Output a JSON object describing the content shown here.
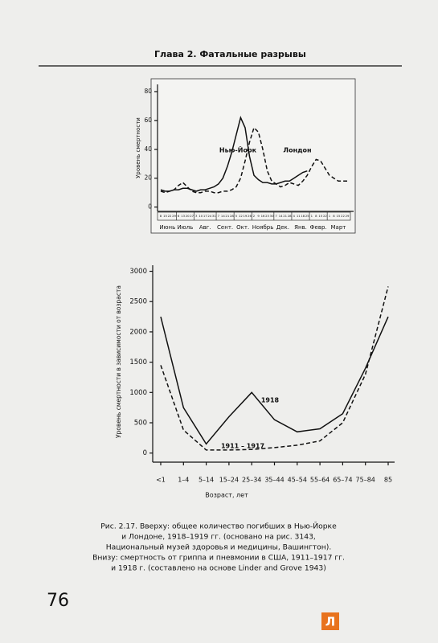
{
  "header": "Глава 2. Фатальные разрывы",
  "chart_data": [
    {
      "type": "line",
      "ylabel": "Уровень смертности",
      "categories": [
        "8",
        "15",
        "22",
        "29",
        "6",
        "13",
        "20",
        "27",
        "3",
        "10",
        "17",
        "24",
        "31",
        "7",
        "14",
        "21",
        "28",
        "5",
        "12",
        "19",
        "26",
        "2",
        "9",
        "16",
        "23",
        "30",
        "7",
        "14",
        "21",
        "28",
        "4",
        "11",
        "18",
        "25",
        "1",
        "8",
        "15",
        "22",
        "1",
        "8",
        "15",
        "22",
        "29"
      ],
      "months": [
        "Июнь",
        "Июль",
        "Авг.",
        "Сент.",
        "Окт.",
        "Ноябрь",
        "Дек.",
        "Янв.",
        "Февр.",
        "Март"
      ],
      "ylim": [
        -3,
        85
      ],
      "yticks": [
        0,
        20,
        40,
        60,
        80
      ],
      "series": [
        {
          "name": "Нью-Йорк",
          "color": "#111111",
          "dashed": false,
          "values": [
            12,
            11,
            11,
            12,
            12,
            13,
            13,
            12,
            11,
            12,
            12,
            13,
            14,
            16,
            20,
            28,
            38,
            50,
            62,
            55,
            35,
            22,
            19,
            17,
            17,
            16,
            16,
            17,
            18,
            18,
            20,
            22,
            24,
            25,
            null,
            null,
            null,
            null,
            null,
            null,
            null,
            null,
            null
          ]
        },
        {
          "name": "Лондон",
          "color": "#111111",
          "dashed": true,
          "values": [
            11,
            10,
            11,
            12,
            15,
            17,
            14,
            11,
            10,
            10,
            11,
            11,
            10,
            10,
            11,
            11,
            12,
            14,
            20,
            32,
            45,
            55,
            52,
            40,
            25,
            18,
            16,
            14,
            15,
            17,
            16,
            15,
            18,
            22,
            28,
            33,
            32,
            27,
            22,
            20,
            18,
            18,
            18
          ]
        }
      ]
    },
    {
      "type": "line",
      "ylabel": "Уровень смертности в зависимости от возраста",
      "xlabel": "Возраст, лет",
      "categories": [
        "<1",
        "1–4",
        "5–14",
        "15–24",
        "25–34",
        "35–44",
        "45–54",
        "55–64",
        "65–74",
        "75–84",
        "85"
      ],
      "ylim": [
        -150,
        3100
      ],
      "yticks": [
        0,
        500,
        1000,
        1500,
        2000,
        2500,
        3000
      ],
      "series": [
        {
          "name": "1918",
          "color": "#111111",
          "dashed": false,
          "values": [
            2250,
            750,
            150,
            600,
            1000,
            550,
            350,
            400,
            650,
            1400,
            2250
          ]
        },
        {
          "name": "1911 – 1917",
          "color": "#111111",
          "dashed": true,
          "values": [
            1450,
            380,
            50,
            50,
            60,
            90,
            130,
            200,
            500,
            1300,
            2750
          ]
        }
      ]
    }
  ],
  "caption": [
    "Рис. 2.17. Вверху: общее количество погибших в Нью-Йорке",
    "и Лондоне, 1918–1919 гг. (основано на рис. 3143,",
    "Национальный музей здоровья и медицины, Вашингтон).",
    "Внизу: смертность от гриппа и пневмонии в США, 1911–1917 гг.",
    "и 1918 г. (составлено на основе Linder and Grove 1943)"
  ],
  "page_number": "76",
  "logo": "Л"
}
